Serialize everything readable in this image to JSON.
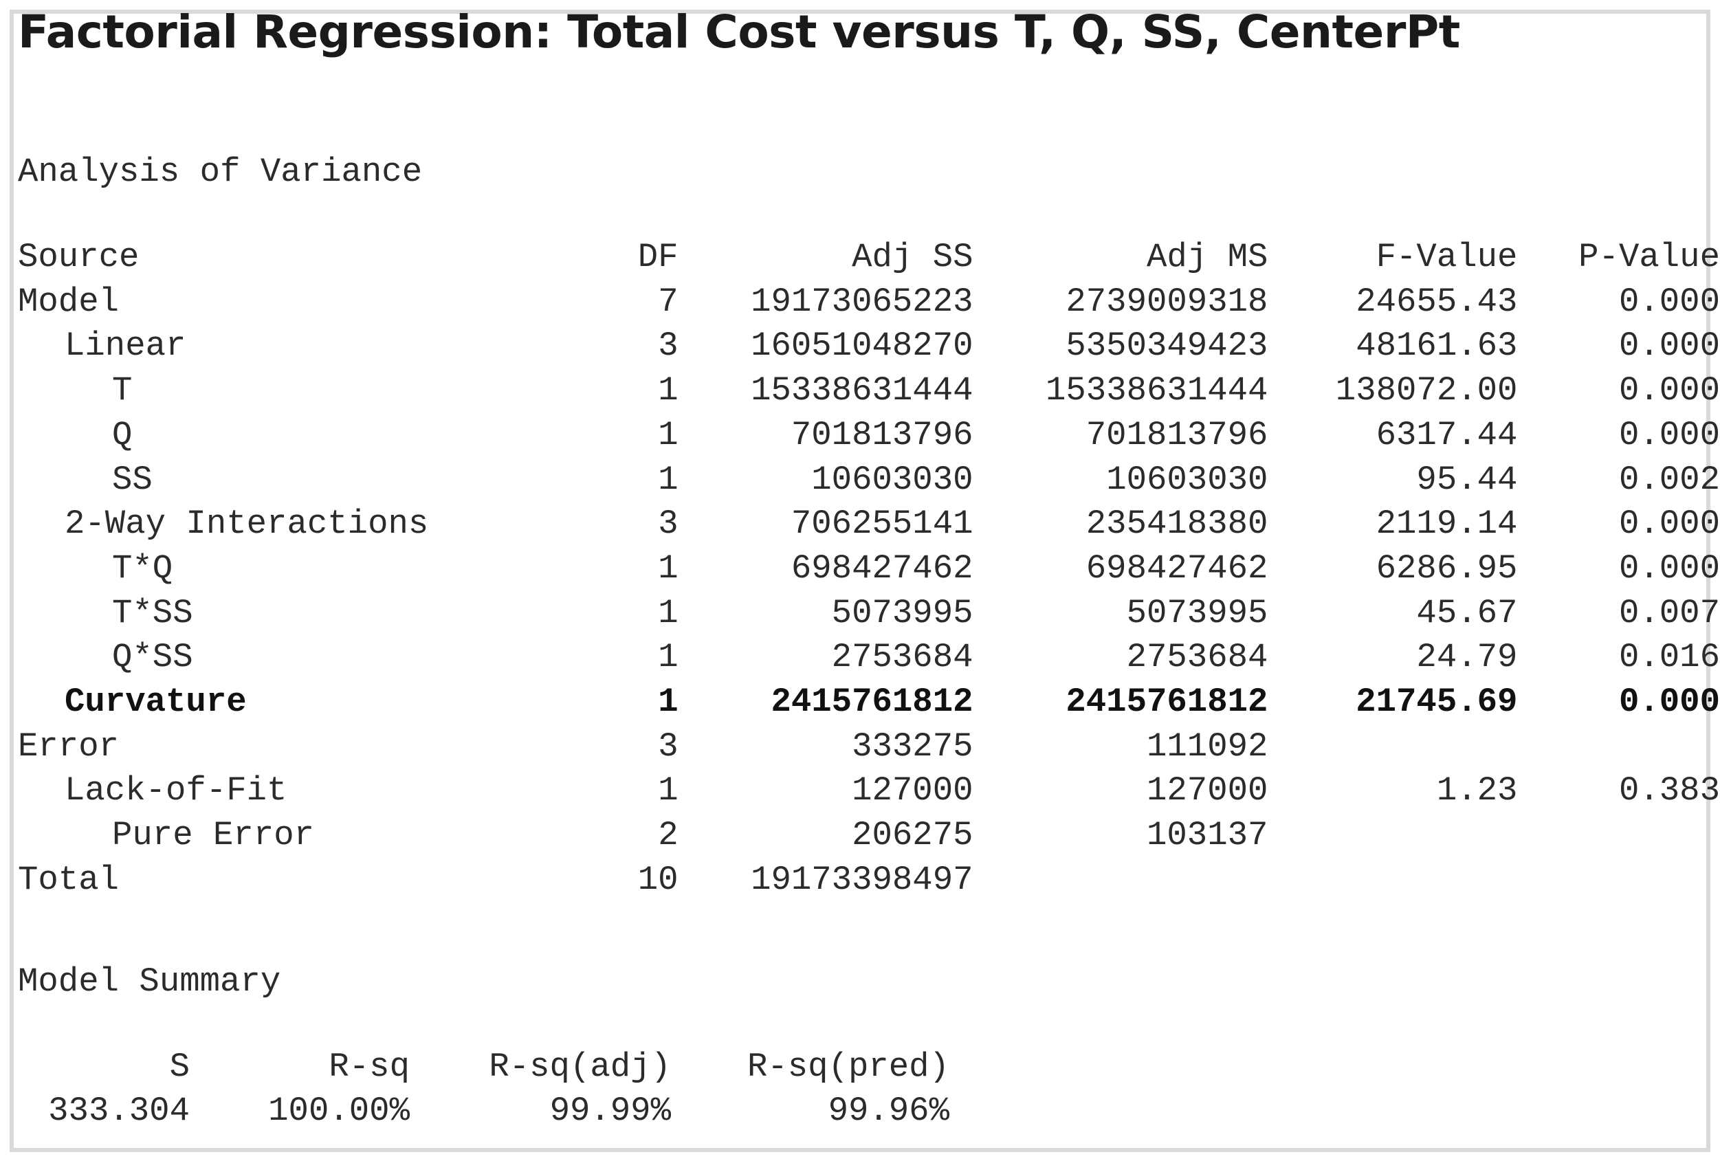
{
  "title": "Factorial Regression: Total Cost versus T, Q, SS, CenterPt",
  "anova": {
    "heading": "Analysis of Variance",
    "columns": [
      "Source",
      "DF",
      "Adj SS",
      "Adj MS",
      "F-Value",
      "P-Value"
    ],
    "rows": [
      {
        "source": "Model",
        "df": "7",
        "adj_ss": "19173065223",
        "adj_ms": "2739009318",
        "f": "24655.43",
        "p": "0.000",
        "indent": 0,
        "bold": false
      },
      {
        "source": "Linear",
        "df": "3",
        "adj_ss": "16051048270",
        "adj_ms": "5350349423",
        "f": "48161.63",
        "p": "0.000",
        "indent": 1,
        "bold": false
      },
      {
        "source": "T",
        "df": "1",
        "adj_ss": "15338631444",
        "adj_ms": "15338631444",
        "f": "138072.00",
        "p": "0.000",
        "indent": 2,
        "bold": false
      },
      {
        "source": "Q",
        "df": "1",
        "adj_ss": "701813796",
        "adj_ms": "701813796",
        "f": "6317.44",
        "p": "0.000",
        "indent": 2,
        "bold": false
      },
      {
        "source": "SS",
        "df": "1",
        "adj_ss": "10603030",
        "adj_ms": "10603030",
        "f": "95.44",
        "p": "0.002",
        "indent": 2,
        "bold": false
      },
      {
        "source": "2-Way Interactions",
        "df": "3",
        "adj_ss": "706255141",
        "adj_ms": "235418380",
        "f": "2119.14",
        "p": "0.000",
        "indent": 1,
        "bold": false
      },
      {
        "source": "T*Q",
        "df": "1",
        "adj_ss": "698427462",
        "adj_ms": "698427462",
        "f": "6286.95",
        "p": "0.000",
        "indent": 2,
        "bold": false
      },
      {
        "source": "T*SS",
        "df": "1",
        "adj_ss": "5073995",
        "adj_ms": "5073995",
        "f": "45.67",
        "p": "0.007",
        "indent": 2,
        "bold": false
      },
      {
        "source": "Q*SS",
        "df": "1",
        "adj_ss": "2753684",
        "adj_ms": "2753684",
        "f": "24.79",
        "p": "0.016",
        "indent": 2,
        "bold": false
      },
      {
        "source": "Curvature",
        "df": "1",
        "adj_ss": "2415761812",
        "adj_ms": "2415761812",
        "f": "21745.69",
        "p": "0.000",
        "indent": 1,
        "bold": true
      },
      {
        "source": "Error",
        "df": "3",
        "adj_ss": "333275",
        "adj_ms": "111092",
        "f": "",
        "p": "",
        "indent": 0,
        "bold": false
      },
      {
        "source": "Lack-of-Fit",
        "df": "1",
        "adj_ss": "127000",
        "adj_ms": "127000",
        "f": "1.23",
        "p": "0.383",
        "indent": 1,
        "bold": false
      },
      {
        "source": "Pure Error",
        "df": "2",
        "adj_ss": "206275",
        "adj_ms": "103137",
        "f": "",
        "p": "",
        "indent": 2,
        "bold": false
      },
      {
        "source": "Total",
        "df": "10",
        "adj_ss": "19173398497",
        "adj_ms": "",
        "f": "",
        "p": "",
        "indent": 0,
        "bold": false
      }
    ]
  },
  "model_summary": {
    "heading": "Model Summary",
    "columns": [
      "S",
      "R-sq",
      "R-sq(adj)",
      "R-sq(pred)"
    ],
    "values": [
      "333.304",
      "100.00%",
      "99.99%",
      "99.96%"
    ]
  },
  "colors": {
    "border": "#d9d9d9",
    "text": "#2b2b2b",
    "title": "#1a1a1a"
  }
}
